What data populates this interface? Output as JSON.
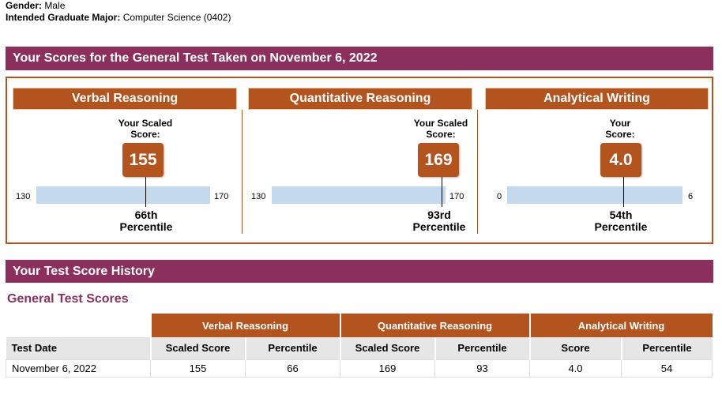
{
  "applicant": {
    "gender_label": "Gender:",
    "gender_value": "Male",
    "major_label": "Intended Graduate Major:",
    "major_value": "Computer Science (0402)"
  },
  "scores_banner": "Your Scores for the General Test Taken on November 6, 2022",
  "sections": [
    {
      "title": "Verbal Reasoning",
      "score_label_1": "Your Scaled",
      "score_label_2": "Score:",
      "score": "155",
      "min": "130",
      "max": "170",
      "percentile": "66th",
      "percentile_word": "Percentile",
      "level": 0.625
    },
    {
      "title": "Quantitative Reasoning",
      "score_label_1": "Your Scaled",
      "score_label_2": "Score:",
      "score": "169",
      "min": "130",
      "max": "170",
      "percentile": "93rd",
      "percentile_word": "Percentile",
      "level": 0.975
    },
    {
      "title": "Analytical Writing",
      "score_label_1": "Your",
      "score_label_2": "Score:",
      "score": "4.0",
      "min": "0",
      "max": "6",
      "percentile": "54th",
      "percentile_word": "Percentile",
      "level": 0.667
    }
  ],
  "history_banner": "Your Test Score History",
  "history_subhead": "General Test Scores",
  "history_table": {
    "groups": [
      "Verbal Reasoning",
      "Quantitative Reasoning",
      "Analytical Writing"
    ],
    "columns": [
      "Test Date",
      "Scaled Score",
      "Percentile",
      "Scaled Score",
      "Percentile",
      "Score",
      "Percentile"
    ],
    "rows": [
      [
        "November 6, 2022",
        "155",
        "66",
        "169",
        "93",
        "4.0",
        "54"
      ]
    ]
  },
  "colors": {
    "accent_purple": "#8b2f5c",
    "accent_orange": "#b3541e",
    "scale_blue": "#c5d9ec"
  }
}
